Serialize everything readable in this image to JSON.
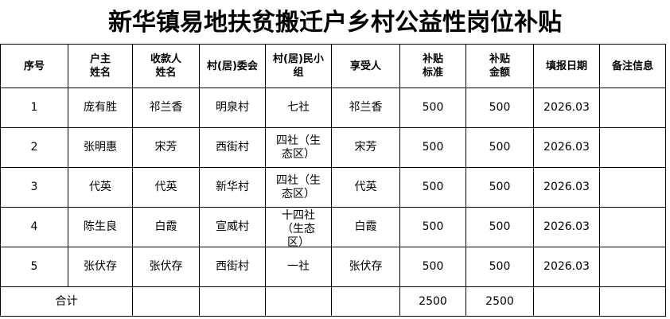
{
  "title": "新华镇易地扶贫搬迁户乡村公益性岗位补贴",
  "headers": [
    "序号",
    "户主\n姓名",
    "收款人\n姓名",
    "村(居)委会",
    "村(居)民小\n组",
    "享受人",
    "补贴\n标准",
    "补贴\n金额",
    "填报日期",
    "备注信息"
  ],
  "rows": [
    [
      "1",
      "庞有胜",
      "祁兰香",
      "明泉村",
      "七社",
      "祁兰香",
      "500",
      "500",
      "2026.03",
      ""
    ],
    [
      "2",
      "张明惠",
      "宋芳",
      "西街村",
      "四社（生\n态区）",
      "宋芳",
      "500",
      "500",
      "2026.03",
      ""
    ],
    [
      "3",
      "代英",
      "代英",
      "新华村",
      "四社（生\n态区）",
      "代英",
      "500",
      "500",
      "2026.03",
      ""
    ],
    [
      "4",
      "陈生良",
      "白霞",
      "宣威村",
      "十四社\n（生态\n区）",
      "白霞",
      "500",
      "500",
      "2026.03",
      ""
    ],
    [
      "5",
      "张伏存",
      "张伏存",
      "西街村",
      "一社",
      "张伏存",
      "500",
      "500",
      "2026.03",
      ""
    ]
  ],
  "total": {
    "label": "合计",
    "standard": "2500",
    "amount": "2500"
  }
}
